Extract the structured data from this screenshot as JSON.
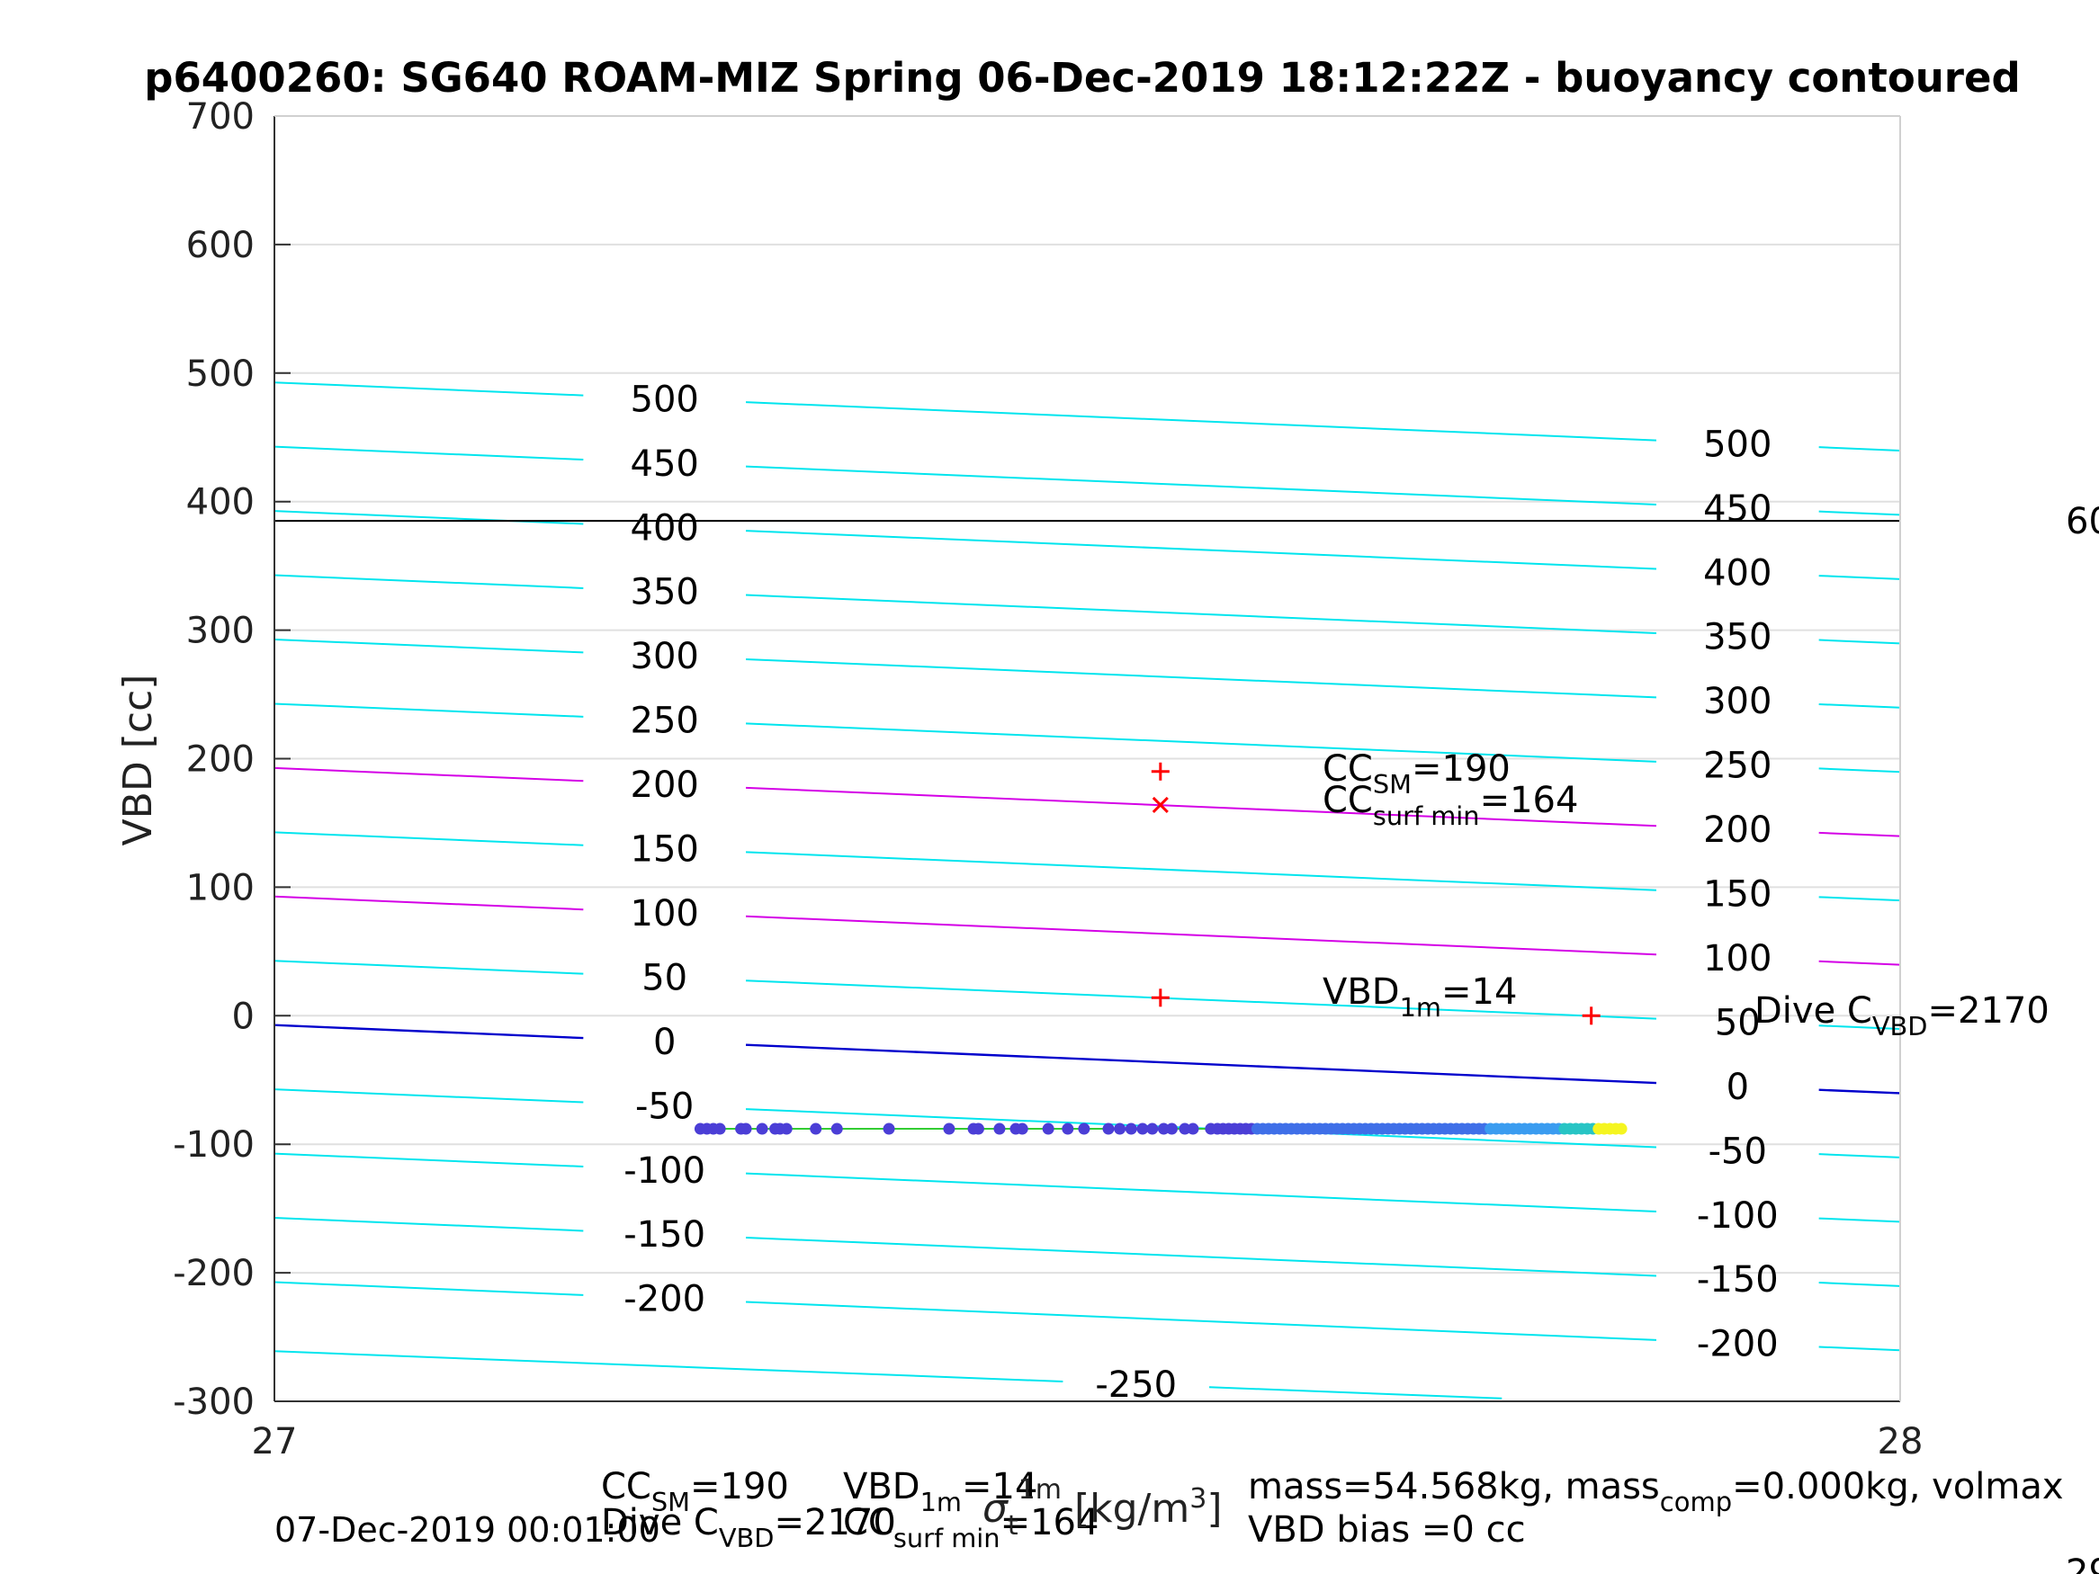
{
  "chart_data": {
    "type": "scatter",
    "title": "p6400260: SG640 ROAM-MIZ Spring 06-Dec-2019 18:12:22Z - buoyancy contoured",
    "xlabel": "σ_t^1m [kg/m^3]",
    "ylabel": "VBD [cc]",
    "xlim": [
      27,
      28
    ],
    "ylim": [
      -300,
      700
    ],
    "xticks": [
      "27",
      "28"
    ],
    "yticks": [
      "-300",
      "-200",
      "-100",
      "0",
      "100",
      "200",
      "300",
      "400",
      "500",
      "600",
      "700"
    ],
    "grid": true,
    "hline": {
      "y": 385,
      "label": "60"
    },
    "contours_left": [
      {
        "label": "500",
        "y": 480
      },
      {
        "label": "450",
        "y": 430
      },
      {
        "label": "400",
        "y": 380
      },
      {
        "label": "350",
        "y": 330
      },
      {
        "label": "300",
        "y": 280
      },
      {
        "label": "250",
        "y": 230
      },
      {
        "label": "200",
        "y": 180
      },
      {
        "label": "150",
        "y": 130
      },
      {
        "label": "100",
        "y": 80
      },
      {
        "label": "50",
        "y": 30
      },
      {
        "label": "0",
        "y": -20
      },
      {
        "label": "-50",
        "y": -70
      },
      {
        "label": "-100",
        "y": -120
      },
      {
        "label": "-150",
        "y": -170
      },
      {
        "label": "-200",
        "y": -220
      }
    ],
    "contours_right": [
      {
        "label": "500",
        "y": 445
      },
      {
        "label": "450",
        "y": 395
      },
      {
        "label": "400",
        "y": 345
      },
      {
        "label": "350",
        "y": 295
      },
      {
        "label": "300",
        "y": 245
      },
      {
        "label": "250",
        "y": 195
      },
      {
        "label": "200",
        "y": 145
      },
      {
        "label": "150",
        "y": 95
      },
      {
        "label": "100",
        "y": 45
      },
      {
        "label": "50",
        "y": -5
      },
      {
        "label": "0",
        "y": -55
      },
      {
        "label": "-50",
        "y": -105
      },
      {
        "label": "-100",
        "y": -155
      },
      {
        "label": "-150",
        "y": -205
      },
      {
        "label": "-200",
        "y": -255
      }
    ],
    "contour_bottom": {
      "label": "-250"
    },
    "markers": [
      {
        "symbol": "+",
        "x": 27.545,
        "y": 190,
        "label_main": "CC",
        "label_sub": "SM",
        "label_value": "=190"
      },
      {
        "symbol": "x",
        "x": 27.545,
        "y": 164,
        "label_main": "CC",
        "label_sub": "surf min",
        "label_value": "=164"
      },
      {
        "symbol": "+",
        "x": 27.545,
        "y": 14,
        "label_main": "VBD",
        "label_sub": "1m",
        "label_value": "=14"
      },
      {
        "symbol": "+",
        "x": 27.81,
        "y": 0,
        "label_main": "Dive C",
        "label_sub": "VBD",
        "label_value": "=2170"
      }
    ],
    "series": [
      {
        "x_range": [
          27.26,
          27.83
        ],
        "y": -88
      }
    ]
  },
  "footer": {
    "date": "07-Dec-2019 00:01:00",
    "cc_sm": "=190",
    "vbd_1m": "=14",
    "dive_c": "=2170",
    "cc_surf_min": "=164",
    "mass_line": "mass=54.568kg, mass",
    "mass_sub": "comp",
    "mass_rest": "=0.000kg, volmax",
    "vbd_bias": "VBD bias =0 cc",
    "corner_fragment": "29"
  }
}
